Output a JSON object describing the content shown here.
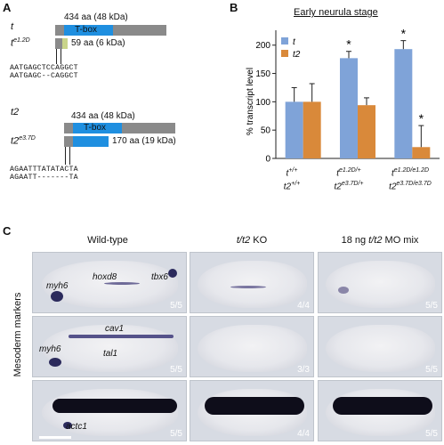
{
  "panel_a": {
    "letter": "A",
    "t_label": "t",
    "t_mut_label_base": "t",
    "t_mut_label_sup": "e1.2D",
    "t_full_text": "434 aa (48 kDa)",
    "t_tbox_text": "T-box",
    "t_mut_text": "59 aa (6 kDa)",
    "t_seq1": "AATGAGCTCCAGGCT",
    "t_seq2": "AATGAGC--CAGGCT",
    "t2_label": "t2",
    "t2_mut_label_base": "t2",
    "t2_mut_label_sup": "e3.7D",
    "t2_full_text": "434 aa (48 kDa)",
    "t2_tbox_text": "T-box",
    "t2_mut_text": "170 aa (19 kDa)",
    "t2_seq1": "AGAATTTATATACTA",
    "t2_seq2": "AGAATT-------TA"
  },
  "panel_b": {
    "letter": "B",
    "title": "Early neurula stage",
    "ylabel": "% transcript level",
    "legend_t": "t",
    "legend_t2": "t2",
    "group1_line1": "t",
    "group1_line1_sup": "+/+",
    "group1_line2": "t2",
    "group1_line2_sup": "+/+",
    "group2_line1": "t",
    "group2_line1_sup": "e1.2D/+",
    "group2_line2": "t2",
    "group2_line2_sup": "e3.7D/+",
    "group3_line1": "t",
    "group3_line1_sup": "e1.2D/e1.2D",
    "group3_line2": "t2",
    "group3_line2_sup": "e3.7D/e3.7D",
    "ticks": [
      "0",
      "50",
      "100",
      "150",
      "200"
    ],
    "star": "*"
  },
  "chart_data": {
    "type": "bar",
    "title": "Early neurula stage",
    "ylabel": "% transcript level",
    "categories": [
      "t+/+ t2+/+",
      "te1.2D/+ t2e3.7D/+",
      "te1.2D/e1.2D t2e3.7D/e3.7D"
    ],
    "series": [
      {
        "name": "t",
        "values": [
          100,
          177,
          193
        ],
        "errors": [
          25,
          12,
          15
        ],
        "color": "#7fa3d8"
      },
      {
        "name": "t2",
        "values": [
          100,
          94,
          20
        ],
        "errors": [
          32,
          13,
          38
        ],
        "color": "#d9893a"
      }
    ],
    "significant": [
      [
        false,
        true,
        true
      ],
      [
        false,
        false,
        true
      ]
    ],
    "ylim": [
      0,
      220
    ],
    "yticks": [
      0,
      50,
      100,
      150,
      200
    ]
  },
  "panel_c": {
    "letter": "C",
    "col1": "Wild-type",
    "col2_base": "t/t2",
    "col2_rest": " KO",
    "col3_pre": "18 ng ",
    "col3_it": "t/t2",
    "col3_post": " MO mix",
    "side_label": "Mesoderm markers",
    "row1_counts": [
      "5/5",
      "4/4",
      "5/5"
    ],
    "row2_counts": [
      "5/5",
      "3/3",
      "5/5"
    ],
    "row3_counts": [
      "5/5",
      "4/4",
      "5/5"
    ],
    "genes": {
      "myh6_a": "myh6",
      "hoxd8": "hoxd8",
      "tbx6": "tbx6",
      "cav1": "cav1",
      "myh6_b": "myh6",
      "tal1": "tal1",
      "actc1": "actc1"
    }
  }
}
